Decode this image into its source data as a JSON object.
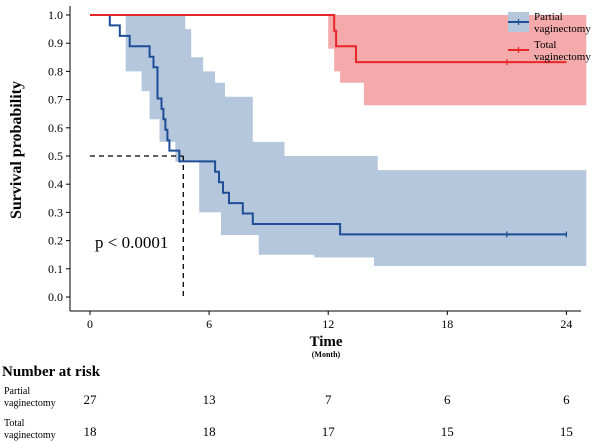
{
  "chart_data": {
    "type": "line",
    "subtype": "kaplan-meier",
    "xlabel": "Time",
    "xlabel_sub": "(Month)",
    "ylabel": "Survival probability",
    "xlim": [
      0,
      25
    ],
    "ylim": [
      0,
      1
    ],
    "x_ticks": [
      "0",
      "6",
      "12",
      "18",
      "24"
    ],
    "y_ticks": [
      "0.0",
      "0.1",
      "0.2",
      "0.3",
      "0.4",
      "0.5",
      "0.6",
      "0.7",
      "0.8",
      "0.9",
      "1.0"
    ],
    "grid": false,
    "legend_position": "top-right",
    "annotation": "p < 0.0001",
    "median_line": {
      "y": 0.5,
      "x": 4.7
    },
    "series": [
      {
        "name": "Partial vaginectomy",
        "color": "#1f4e96",
        "band_color": "#b4c7dd",
        "steps": [
          [
            0,
            1.0
          ],
          [
            1,
            0.963
          ],
          [
            1.5,
            0.926
          ],
          [
            2,
            0.889
          ],
          [
            3,
            0.852
          ],
          [
            3.2,
            0.815
          ],
          [
            3.4,
            0.704
          ],
          [
            3.6,
            0.667
          ],
          [
            3.7,
            0.63
          ],
          [
            3.8,
            0.593
          ],
          [
            3.9,
            0.556
          ],
          [
            4.0,
            0.519
          ],
          [
            4.5,
            0.481
          ],
          [
            6.3,
            0.444
          ],
          [
            6.5,
            0.407
          ],
          [
            6.7,
            0.37
          ],
          [
            7.0,
            0.333
          ],
          [
            7.7,
            0.296
          ],
          [
            8.2,
            0.259
          ],
          [
            12.6,
            0.222
          ],
          [
            24,
            0.222
          ]
        ],
        "upper": [
          [
            3,
            1.0
          ],
          [
            4.8,
            0.95
          ],
          [
            5.1,
            0.85
          ],
          [
            5.7,
            0.8
          ],
          [
            6.3,
            0.76
          ],
          [
            6.8,
            0.71
          ],
          [
            8.2,
            0.55
          ],
          [
            9.8,
            0.5
          ],
          [
            14.5,
            0.45
          ],
          [
            25,
            0.45
          ]
        ],
        "lower": [
          [
            1.8,
            0.8
          ],
          [
            2.6,
            0.73
          ],
          [
            3,
            0.63
          ],
          [
            3.5,
            0.55
          ],
          [
            4.3,
            0.48
          ],
          [
            5.5,
            0.3
          ],
          [
            6.6,
            0.22
          ],
          [
            8.5,
            0.15
          ],
          [
            11.3,
            0.14
          ],
          [
            14.3,
            0.11
          ],
          [
            25,
            0.11
          ]
        ],
        "censor": [
          [
            21,
            0.222
          ],
          [
            24,
            0.222
          ]
        ]
      },
      {
        "name": "Total vaginectomy",
        "color": "#e8262a",
        "band_color": "#f4a9ab",
        "steps": [
          [
            0,
            1.0
          ],
          [
            11.95,
            1.0
          ],
          [
            12.3,
            0.944
          ],
          [
            12.4,
            0.889
          ],
          [
            13.4,
            0.833
          ],
          [
            24,
            0.833
          ]
        ],
        "upper": [
          [
            12,
            1.0
          ],
          [
            25,
            1.0
          ]
        ],
        "lower": [
          [
            12,
            0.88
          ],
          [
            12.3,
            0.8
          ],
          [
            12.6,
            0.76
          ],
          [
            13.8,
            0.68
          ],
          [
            25,
            0.68
          ]
        ],
        "censor": [
          [
            21,
            0.833
          ]
        ]
      }
    ],
    "risk_table": {
      "title": "Number at risk",
      "times": [
        0,
        6,
        12,
        18,
        24
      ],
      "rows": [
        {
          "label_line1": "Partial",
          "label_line2": "vaginectomy",
          "values": [
            "27",
            "13",
            "7",
            "6",
            "6"
          ]
        },
        {
          "label_line1": "Total",
          "label_line2": "vaginectomy",
          "values": [
            "18",
            "18",
            "17",
            "15",
            "15"
          ]
        }
      ]
    }
  }
}
